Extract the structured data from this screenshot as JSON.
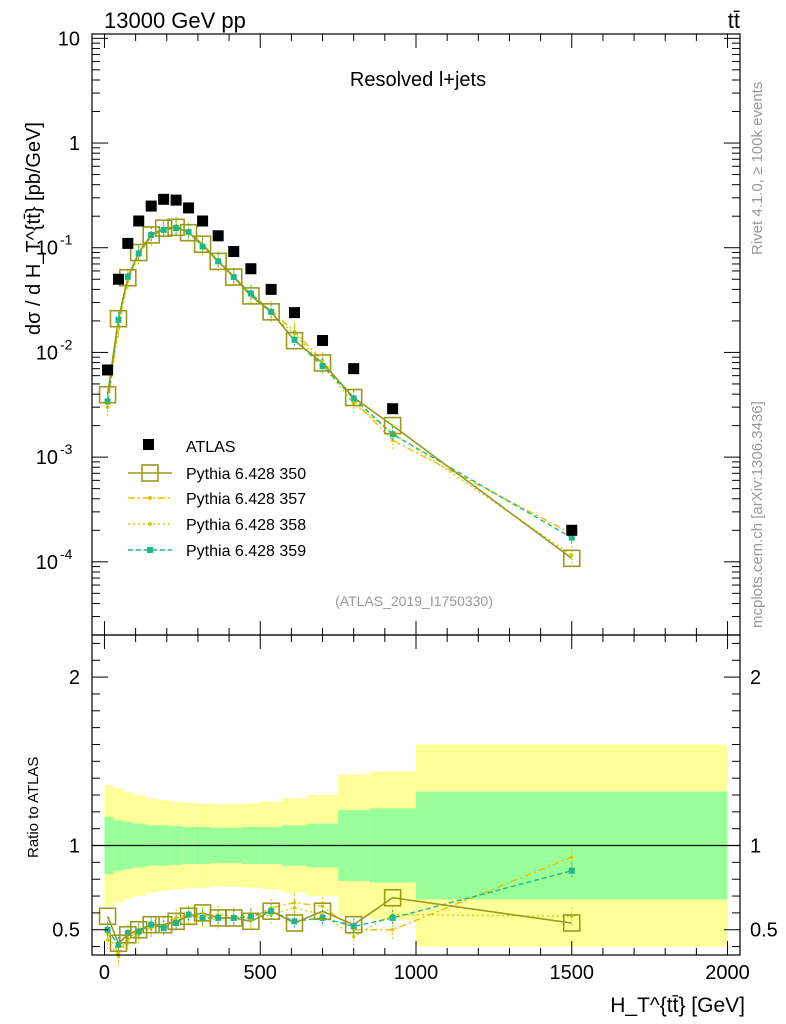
{
  "header": {
    "energy_label": "13000 GeV pp",
    "process_label": "tt̄",
    "side_rivet": "Rivet 4.1.0, ≥ 100k events",
    "side_mcplots": "mcplots.cern.ch [arXiv:1306.3436]"
  },
  "chart_data": {
    "type": "scatter",
    "title": "Resolved l+jets",
    "analysis_id": "(ATLAS_2019_I1750330)",
    "main_panel": {
      "ylabel": "dσ / d H_T^{tt̄} [pb/GeV]",
      "yscale": "log",
      "ylim": [
        2e-05,
        11
      ],
      "ytick_labels": [
        "10^-4",
        "10^-3",
        "10^-2",
        "10^-1",
        "1",
        "10"
      ]
    },
    "ratio_panel": {
      "ylabel": "Ratio to ATLAS",
      "ylim": [
        0.35,
        2.25
      ],
      "ytick_labels": [
        "0.5",
        "1",
        "2"
      ]
    },
    "xlabel": "H_T^{tt̄} [GeV]",
    "xlim": [
      -40,
      2040
    ],
    "xtick_labels": [
      "0",
      "500",
      "1000",
      "1500",
      "2000"
    ],
    "x": [
      10,
      45,
      75,
      110,
      150,
      190,
      230,
      270,
      315,
      365,
      415,
      470,
      535,
      610,
      700,
      800,
      925,
      1500
    ],
    "bin_edges": [
      0,
      30,
      60,
      90,
      130,
      170,
      210,
      250,
      290,
      340,
      390,
      440,
      500,
      570,
      650,
      750,
      850,
      1000,
      2000
    ],
    "data": {
      "name": "ATLAS",
      "values": [
        0.0068,
        0.05,
        0.11,
        0.18,
        0.25,
        0.29,
        0.285,
        0.24,
        0.18,
        0.13,
        0.092,
        0.063,
        0.04,
        0.024,
        0.013,
        0.007,
        0.0029,
        0.0002
      ],
      "ratio_band_stat": [
        0.17,
        0.15,
        0.14,
        0.13,
        0.12,
        0.12,
        0.115,
        0.11,
        0.11,
        0.105,
        0.105,
        0.11,
        0.11,
        0.12,
        0.13,
        0.21,
        0.22,
        0.32,
        0.32
      ],
      "ratio_band_total": [
        0.36,
        0.34,
        0.32,
        0.3,
        0.28,
        0.27,
        0.26,
        0.255,
        0.25,
        0.245,
        0.245,
        0.25,
        0.26,
        0.28,
        0.3,
        0.42,
        0.44,
        0.6,
        0.6
      ]
    },
    "series": [
      {
        "name": "Pythia 6.428 350",
        "color": "#9a9a1c",
        "style": "solid-open-square",
        "ratio": [
          0.58,
          0.42,
          0.47,
          0.5,
          0.53,
          0.53,
          0.55,
          0.58,
          0.6,
          0.57,
          0.57,
          0.55,
          0.61,
          0.54,
          0.61,
          0.53,
          0.69,
          0.54
        ]
      },
      {
        "name": "Pythia 6.428 357",
        "color": "#e8c000",
        "style": "dashdot",
        "ratio": [
          0.48,
          0.36,
          0.45,
          0.49,
          0.51,
          0.52,
          0.57,
          0.59,
          0.58,
          0.59,
          0.58,
          0.57,
          0.63,
          0.66,
          0.64,
          0.5,
          0.5,
          0.93
        ]
      },
      {
        "name": "Pythia 6.428 358",
        "color": "#c8d400",
        "style": "dotted",
        "ratio": [
          0.44,
          0.34,
          0.44,
          0.47,
          0.52,
          0.52,
          0.55,
          0.58,
          0.57,
          0.56,
          0.58,
          0.56,
          0.59,
          0.63,
          0.59,
          0.46,
          0.59,
          0.58
        ]
      },
      {
        "name": "Pythia 6.428 359",
        "color": "#1db889",
        "style": "dashed-filled-square",
        "ratio": [
          0.5,
          0.41,
          0.48,
          0.49,
          0.53,
          0.51,
          0.54,
          0.59,
          0.57,
          0.57,
          0.57,
          0.58,
          0.61,
          0.55,
          0.57,
          0.52,
          0.57,
          0.85
        ]
      }
    ]
  }
}
